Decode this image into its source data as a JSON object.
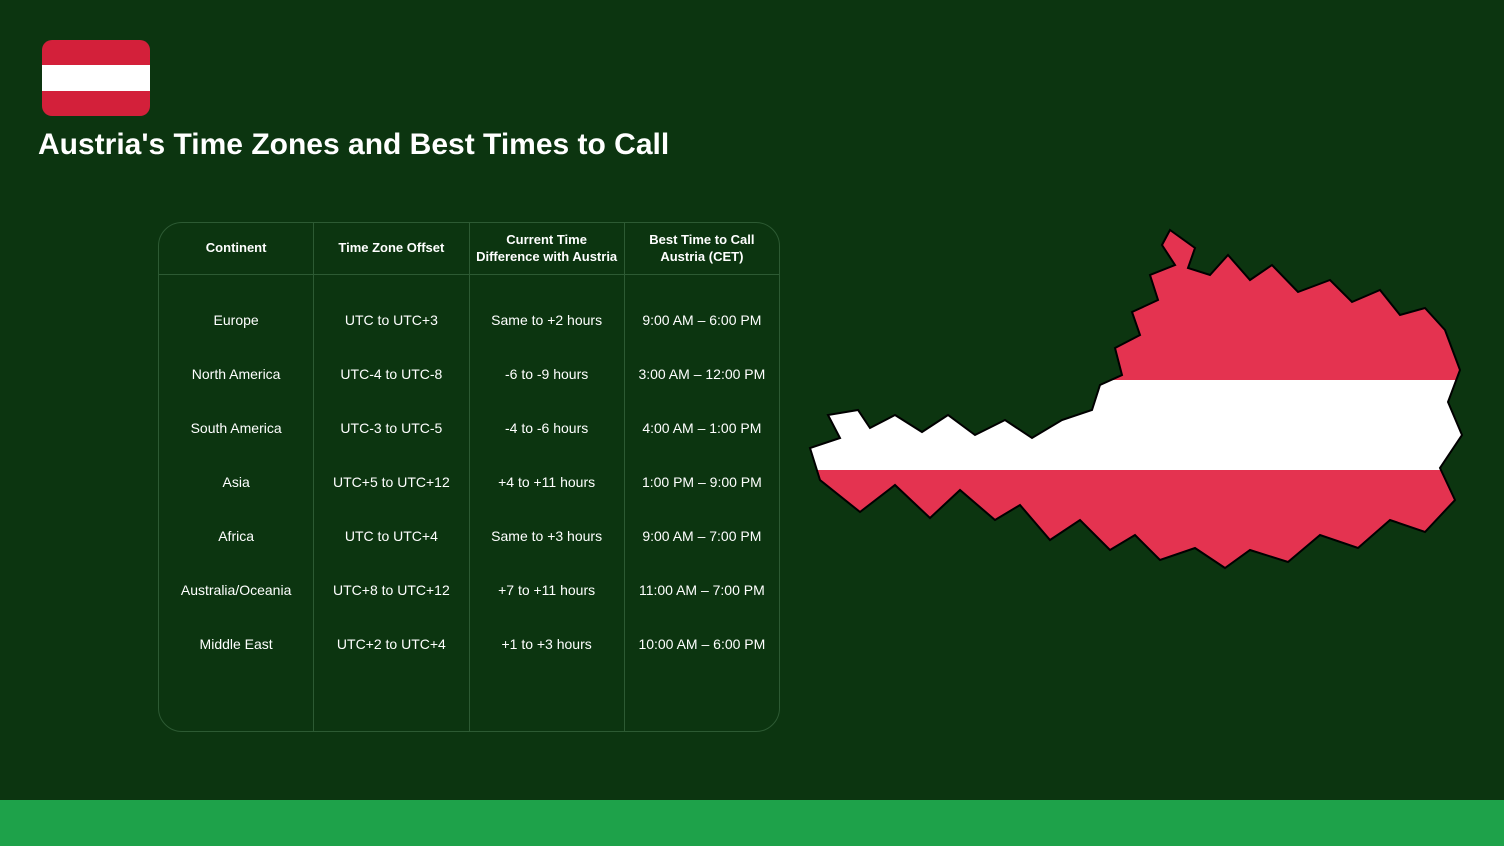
{
  "title": "Austria's Time Zones and Best Times to Call",
  "flag": {
    "top_color": "#d3203a",
    "middle_color": "#ffffff",
    "bottom_color": "#d3203a"
  },
  "map": {
    "fill_top": "#e43350",
    "fill_middle": "#ffffff",
    "fill_bottom": "#e43350",
    "stroke": "#000000"
  },
  "background_color": "#0c3510",
  "bottom_bar_color": "#1ea24a",
  "border_color": "#2d5a33",
  "text_color": "#ffffff",
  "table": {
    "columns": [
      "Continent",
      "Time Zone Offset",
      "Current Time Difference with Austria",
      "Best Time to Call Austria (CET)"
    ],
    "rows": [
      {
        "continent": "Europe",
        "offset": "UTC to UTC+3",
        "diff": "Same to +2 hours",
        "best": "9:00 AM – 6:00 PM"
      },
      {
        "continent": "North America",
        "offset": "UTC-4 to UTC-8",
        "diff": "-6 to -9 hours",
        "best": "3:00 AM – 12:00 PM"
      },
      {
        "continent": "South America",
        "offset": "UTC-3 to UTC-5",
        "diff": "-4 to -6 hours",
        "best": "4:00 AM – 1:00 PM"
      },
      {
        "continent": "Asia",
        "offset": "UTC+5 to UTC+12",
        "diff": "+4 to +11 hours",
        "best": "1:00 PM – 9:00 PM"
      },
      {
        "continent": "Africa",
        "offset": "UTC to UTC+4",
        "diff": "Same to +3 hours",
        "best": "9:00 AM – 7:00 PM"
      },
      {
        "continent": "Australia/Oceania",
        "offset": "UTC+8 to UTC+12",
        "diff": "+7 to +11 hours",
        "best": "11:00 AM – 7:00 PM"
      },
      {
        "continent": "Middle East",
        "offset": "UTC+2 to UTC+4",
        "diff": "+1 to +3 hours",
        "best": "10:00 AM – 6:00 PM"
      }
    ]
  }
}
